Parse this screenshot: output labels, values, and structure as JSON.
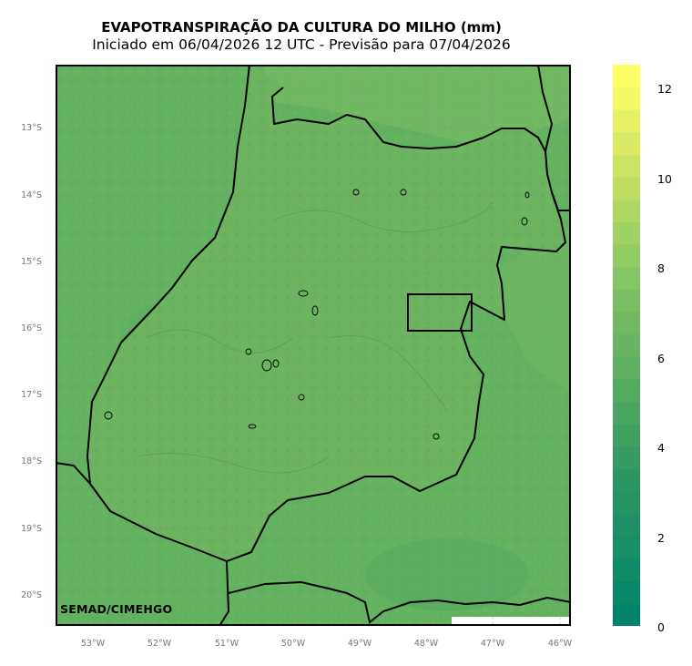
{
  "title": {
    "main": "EVAPOTRANSPIRAÇÃO DA CULTURA DO MILHO (mm)",
    "sub": "Iniciado em 06/04/2026 12 UTC - Previsão para 07/04/2026"
  },
  "credit": "SEMAD/CIMEHGO",
  "axes": {
    "lat_labels": [
      "13°S",
      "14°S",
      "15°S",
      "16°S",
      "17°S",
      "18°S",
      "19°S",
      "20°S"
    ],
    "lon_labels": [
      "53°W",
      "52°W",
      "51°W",
      "50°W",
      "49°W",
      "48°W",
      "47°W",
      "46°W"
    ]
  },
  "colorbar": {
    "ticks": [
      "0",
      "2",
      "4",
      "6",
      "8",
      "10",
      "12"
    ],
    "range": [
      0,
      12.5
    ],
    "low_color": "#00856a",
    "mid_color": "#5aae61",
    "high_color": "#ffff66"
  },
  "map": {
    "background_color": "#62b260",
    "region_color": "#6bb35f",
    "border_color": "#000000",
    "gridlines": true
  }
}
